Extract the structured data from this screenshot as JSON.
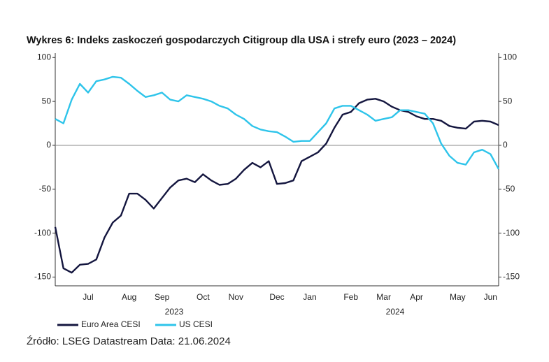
{
  "chart_data": {
    "type": "line",
    "title": "Wykres 6: Indeks zaskoczeń gospodarczych Citigroup dla USA i strefy euro (2023 – 2024)",
    "categories": [
      null,
      null,
      null,
      null,
      "Jul",
      null,
      null,
      null,
      null,
      "Aug",
      null,
      null,
      null,
      "Sep",
      null,
      null,
      null,
      null,
      "Oct",
      null,
      null,
      null,
      "Nov",
      null,
      null,
      null,
      null,
      "Dec",
      null,
      null,
      null,
      "Jan",
      null,
      null,
      null,
      null,
      "Feb",
      null,
      null,
      null,
      "Mar",
      null,
      null,
      null,
      "Apr",
      null,
      null,
      null,
      null,
      "May",
      null,
      null,
      null,
      "Jun",
      null
    ],
    "x_group_labels": [
      "2023",
      "2024"
    ],
    "series": [
      {
        "name": "Euro Area CESI",
        "color": "#14163f",
        "values": [
          -93,
          -140,
          -145,
          -136,
          -135,
          -130,
          -105,
          -88,
          -80,
          -55,
          -55,
          -62,
          -72,
          -60,
          -48,
          -40,
          -38,
          -42,
          -33,
          -40,
          -45,
          -44,
          -38,
          -28,
          -20,
          -25,
          -18,
          -44,
          -43,
          -40,
          -18,
          -13,
          -8,
          2,
          20,
          35,
          38,
          48,
          52,
          53,
          50,
          44,
          40,
          38,
          33,
          30,
          30,
          28,
          22,
          20,
          19,
          27,
          28,
          27,
          23
        ]
      },
      {
        "name": "US CESI",
        "color": "#2ec4ea",
        "values": [
          30,
          25,
          52,
          70,
          60,
          73,
          75,
          78,
          77,
          70,
          62,
          55,
          57,
          60,
          52,
          50,
          57,
          55,
          53,
          50,
          45,
          42,
          35,
          30,
          22,
          18,
          16,
          15,
          10,
          4,
          5,
          5,
          15,
          25,
          42,
          45,
          45,
          40,
          35,
          28,
          30,
          32,
          40,
          40,
          38,
          36,
          25,
          2,
          -12,
          -20,
          -22,
          -8,
          -5,
          -10,
          -27
        ]
      }
    ],
    "ylim": [
      -160,
      105
    ],
    "yticks": [
      -150,
      -100,
      -50,
      0,
      50,
      100
    ],
    "zero_line": true,
    "source": "Źródło: LSEG Datastream Data: 21.06.2024"
  }
}
